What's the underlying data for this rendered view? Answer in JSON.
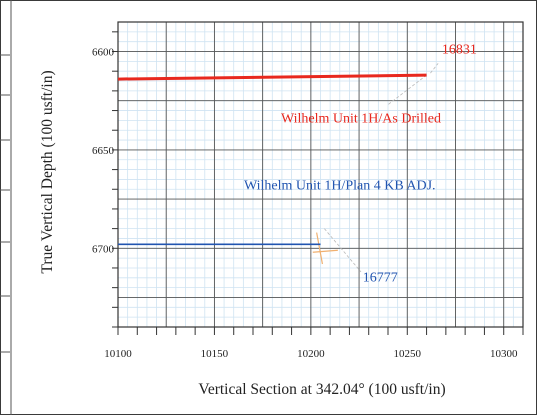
{
  "chart_data": {
    "type": "line",
    "title": "",
    "xlabel": "Vertical Section at 342.04° (100 usft/in)",
    "ylabel": "True Vertical Depth (100 usft/in)",
    "xlim": [
      10100,
      10310
    ],
    "ylim": [
      6585,
      6740
    ],
    "y_inverted": true,
    "grid": true,
    "x_ticks": [
      10100,
      10150,
      10200,
      10250,
      10300
    ],
    "x_tick_labels": [
      "10100",
      "10150",
      "10200",
      "10250",
      "10300"
    ],
    "y_ticks": [
      6600,
      6650,
      6700
    ],
    "y_tick_labels": [
      "6600",
      "6650",
      "6700"
    ],
    "series": [
      {
        "name": "Wilhelm Unit 1H/As Drilled",
        "color": "#e8281e",
        "x": [
          10100,
          10260
        ],
        "y": [
          6614,
          6612
        ]
      },
      {
        "name": "Wilhelm Unit 1H/Plan 4 KB ADJ.",
        "color": "#2255b0",
        "x": [
          10100,
          10205
        ],
        "y": [
          6698,
          6698
        ]
      }
    ],
    "annotations": [
      {
        "text": "16831",
        "color": "#e8281e",
        "x": 10277,
        "y": 6601
      },
      {
        "text": "Wilhelm Unit 1H/As Drilled",
        "color": "#e8281e",
        "x": 10226,
        "y": 6636
      },
      {
        "text": "Wilhelm Unit 1H/Plan 4 KB ADJ.",
        "color": "#2255b0",
        "x": 10215,
        "y": 6670
      },
      {
        "text": "16777",
        "color": "#2255b0",
        "x": 10236,
        "y": 6717
      }
    ]
  }
}
